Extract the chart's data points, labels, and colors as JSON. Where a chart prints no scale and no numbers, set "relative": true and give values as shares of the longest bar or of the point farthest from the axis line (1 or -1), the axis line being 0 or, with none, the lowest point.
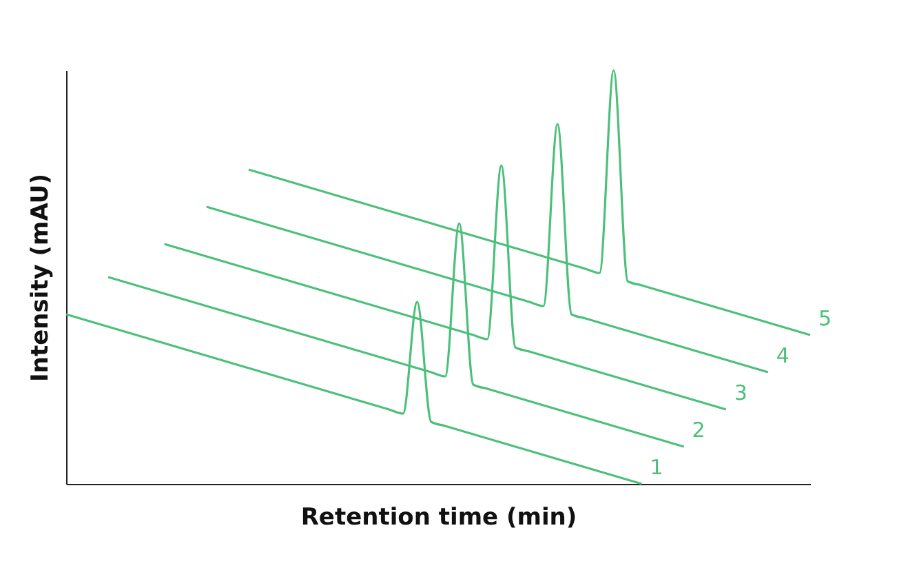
{
  "chart_data": {
    "type": "line",
    "xlabel": "Retention time (min)",
    "ylabel": "Intensity (mAU)",
    "relative": true,
    "grid": false,
    "marker": "none",
    "line_style": "solid",
    "categories": [
      null,
      null,
      null,
      null,
      null,
      null,
      null,
      null,
      null,
      null,
      null,
      null,
      null,
      null,
      null,
      null,
      null,
      null,
      null,
      null,
      null,
      null,
      null,
      null,
      null,
      null,
      null,
      null,
      null,
      null,
      null,
      null,
      null,
      null,
      null,
      null,
      null,
      null,
      null,
      null,
      null,
      null,
      null,
      null,
      null,
      null,
      null,
      null,
      null,
      null,
      null,
      null,
      null,
      null
    ],
    "series": [
      {
        "name": "1",
        "color": "#4cc07a",
        "values": [
          0.41,
          0.4,
          0.39,
          0.38,
          0.37,
          0.36,
          0.35,
          0.34,
          0.33,
          0.32,
          0.31,
          0.3,
          0.29,
          0.28,
          0.27,
          0.26,
          0.25,
          0.24,
          0.23,
          0.22,
          0.21,
          0.2,
          0.19,
          0.18,
          0.17,
          0.44,
          0.15,
          0.14,
          0.13,
          0.12,
          0.11,
          0.1,
          0.09,
          0.08,
          0.07,
          0.06,
          0.05,
          0.04,
          0.03,
          0.02,
          0.01,
          0,
          null,
          null,
          null,
          null,
          null,
          null,
          null,
          null,
          null,
          null,
          null,
          null
        ]
      },
      {
        "name": "2",
        "color": "#4cc07a",
        "values": [
          null,
          null,
          null,
          0.5,
          0.49,
          0.48,
          0.47,
          0.46,
          0.45,
          0.44,
          0.43,
          0.42,
          0.41,
          0.4,
          0.39,
          0.38,
          0.37,
          0.36,
          0.35,
          0.34,
          0.33,
          0.32,
          0.31,
          0.3,
          0.29,
          0.28,
          0.27,
          0.26,
          0.63,
          0.24,
          0.23,
          0.22,
          0.21,
          0.2,
          0.19,
          0.18,
          0.17,
          0.16,
          0.15,
          0.14,
          0.13,
          0.12,
          0.11,
          0.1,
          0.09,
          null,
          null,
          null,
          null,
          null,
          null,
          null,
          null,
          null
        ]
      },
      {
        "name": "3",
        "color": "#4cc07a",
        "values": [
          null,
          null,
          null,
          null,
          null,
          null,
          null,
          0.58,
          0.57,
          0.56,
          0.55,
          0.54,
          0.53,
          0.52,
          0.51,
          0.5,
          0.49,
          0.48,
          0.47,
          0.46,
          0.45,
          0.44,
          0.43,
          0.42,
          0.41,
          0.4,
          0.39,
          0.38,
          0.37,
          0.36,
          0.35,
          0.77,
          0.33,
          0.32,
          0.31,
          0.3,
          0.29,
          0.28,
          0.27,
          0.26,
          0.25,
          0.24,
          0.23,
          0.22,
          0.21,
          0.2,
          0.19,
          0.18,
          null,
          null,
          null,
          null,
          null,
          null
        ]
      },
      {
        "name": "4",
        "color": "#4cc07a",
        "values": [
          null,
          null,
          null,
          null,
          null,
          null,
          null,
          null,
          null,
          null,
          0.67,
          0.66,
          0.65,
          0.64,
          0.63,
          0.62,
          0.61,
          0.6,
          0.59,
          0.58,
          0.57,
          0.56,
          0.55,
          0.54,
          0.53,
          0.52,
          0.51,
          0.5,
          0.49,
          0.48,
          0.47,
          0.46,
          0.45,
          0.44,
          0.43,
          0.87,
          0.41,
          0.4,
          0.39,
          0.38,
          0.37,
          0.36,
          0.35,
          0.34,
          0.33,
          0.32,
          0.31,
          0.3,
          0.29,
          0.28,
          0.27,
          null,
          null,
          null
        ]
      },
      {
        "name": "5",
        "color": "#4cc07a",
        "values": [
          null,
          null,
          null,
          null,
          null,
          null,
          null,
          null,
          null,
          null,
          null,
          null,
          null,
          0.76,
          0.75,
          0.74,
          0.73,
          0.72,
          0.71,
          0.7,
          0.69,
          0.68,
          0.67,
          0.66,
          0.65,
          0.64,
          0.63,
          0.62,
          0.61,
          0.6,
          0.59,
          0.58,
          0.57,
          0.56,
          0.55,
          0.54,
          0.53,
          0.52,
          0.51,
          1,
          0.49,
          0.48,
          0.47,
          0.46,
          0.45,
          0.44,
          0.43,
          0.42,
          0.41,
          0.4,
          0.39,
          0.38,
          0.37,
          0.36
        ]
      }
    ]
  }
}
